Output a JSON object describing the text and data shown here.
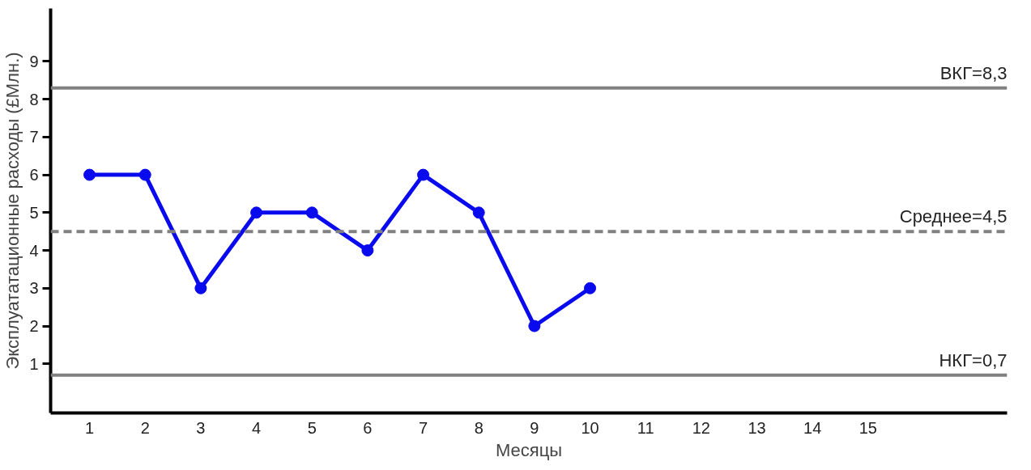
{
  "chart_data": {
    "type": "line",
    "xlabel": "Месяцы",
    "ylabel": "Эксплуататационные расходы (£Млн.)",
    "x": [
      1,
      2,
      3,
      4,
      5,
      6,
      7,
      8,
      9,
      10
    ],
    "series": [
      {
        "color": "#0a0aee",
        "values": [
          6,
          6,
          3,
          5,
          5,
          4,
          6,
          5,
          2,
          3
        ]
      }
    ],
    "xlim": [
      0.3,
      17.5
    ],
    "xticks": [
      1,
      2,
      3,
      4,
      5,
      6,
      7,
      8,
      9,
      10,
      11,
      12,
      13,
      14,
      15
    ],
    "ylim": [
      -0.3,
      10.4
    ],
    "yticks": [
      1,
      2,
      3,
      4,
      5,
      6,
      7,
      8,
      9
    ],
    "marker": "circle",
    "line_style": "solid",
    "grid": false,
    "ref_lines": [
      {
        "axis": "y",
        "value": 8.3,
        "label": "ВКГ=8,3",
        "color": "#808080",
        "line_style": "solid"
      },
      {
        "axis": "y",
        "value": 4.5,
        "label": "Среднее=4,5",
        "color": "#808080",
        "line_style": "dashed"
      },
      {
        "axis": "y",
        "value": 0.7,
        "label": "НКГ=0,7",
        "color": "#808080",
        "line_style": "solid"
      }
    ]
  }
}
